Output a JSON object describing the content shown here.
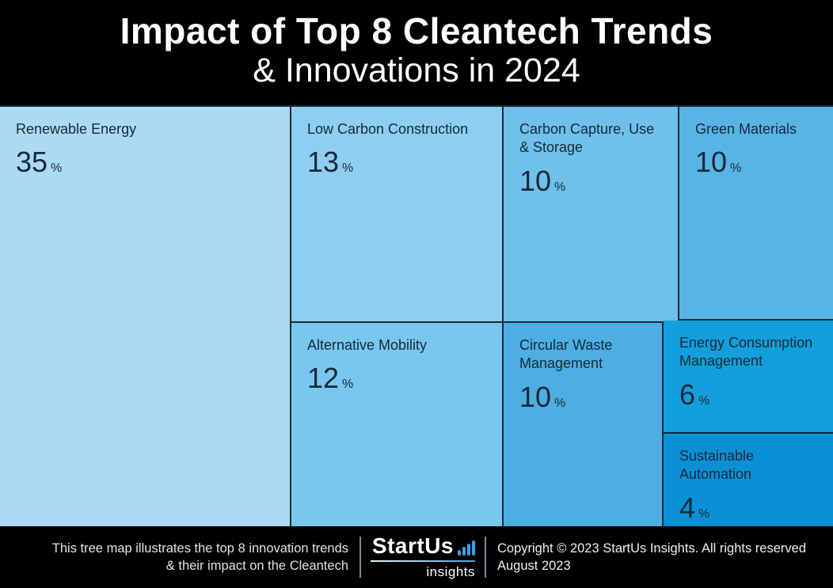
{
  "header": {
    "title_line1": "Impact of Top 8 Cleantech Trends",
    "title_line2": "& Innovations in 2024"
  },
  "chart_data": {
    "type": "treemap",
    "title": "Impact of Top 8 Cleantech Trends & Innovations in 2024",
    "unit": "%",
    "value_range": [
      0,
      35
    ],
    "border_color": "#152a3c",
    "tiles": [
      {
        "label": "Renewable Energy",
        "value": "35",
        "color": "#abdaf4"
      },
      {
        "label": "Low Carbon Construction",
        "value": "13",
        "color": "#8fcef0"
      },
      {
        "label": "Alternative Mobility",
        "value": "12",
        "color": "#79c6ee"
      },
      {
        "label": "Carbon Capture, Use & Storage",
        "value": "10",
        "color": "#6fc0ea"
      },
      {
        "label": "Green Materials",
        "value": "10",
        "color": "#57b4e5"
      },
      {
        "label": "Circular Waste Management",
        "value": "10",
        "color": "#4daee1"
      },
      {
        "label": "Energy Consumption Management",
        "value": "6",
        "color": "#129fdb"
      },
      {
        "label": "Sustainable Automation",
        "value": "4",
        "color": "#0a91d5"
      }
    ]
  },
  "footer": {
    "caption_line1": "This tree map illustrates the top 8 innovation trends",
    "caption_line2": "& their impact on the Cleantech",
    "logo": {
      "brand": "StartUs",
      "sub": "insights",
      "accent_color": "#3f9fdc"
    },
    "copyright_line1": "Copyright © 2023 StartUs Insights. All rights reserved",
    "copyright_line2": "August 2023"
  }
}
